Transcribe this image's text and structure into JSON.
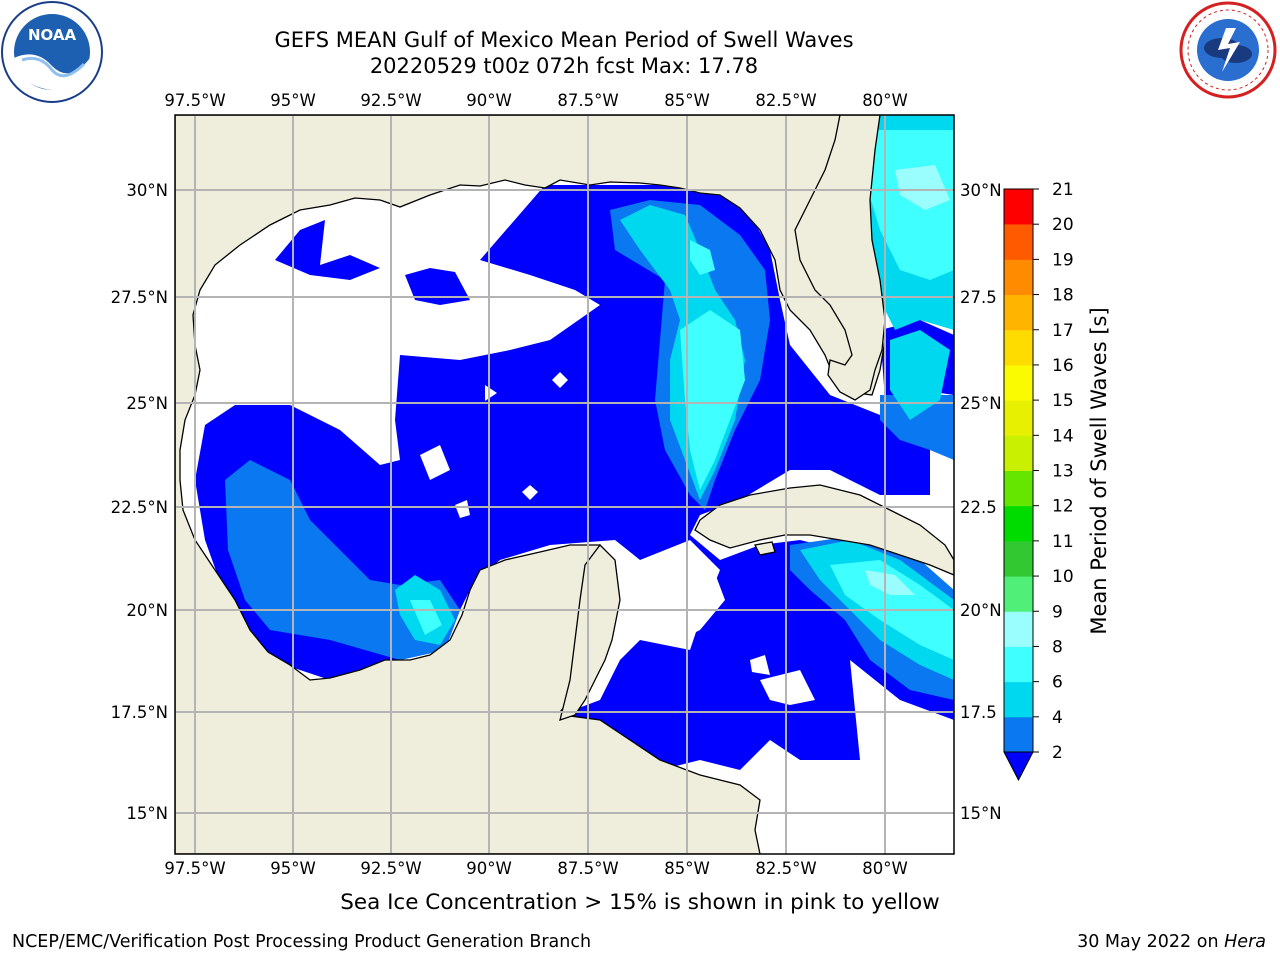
{
  "title": {
    "line1": "GEFS MEAN Gulf of Mexico Mean Period of Swell Waves",
    "line2": "20220529 t00z 072h fcst   Max: 17.78"
  },
  "logos": {
    "left": "noaa-logo",
    "right": "nws-logo"
  },
  "map": {
    "lon_labels": [
      "97.5°W",
      "95°W",
      "92.5°W",
      "90°W",
      "87.5°W",
      "85°W",
      "82.5°W",
      "80°W"
    ],
    "lat_labels_left": [
      "30°N",
      "27.5°N",
      "25°N",
      "22.5°N",
      "20°N",
      "17.5°N",
      "15°N"
    ],
    "lat_labels_right": [
      "30°N",
      "27.5",
      "25°N",
      "22.5",
      "20°N",
      "17.5",
      "15°N"
    ],
    "colors": {
      "land": "#efeedd",
      "ocean_missing": "#ffffff",
      "grid": "#b4b4b4"
    }
  },
  "colorbar": {
    "label": "Mean Period of Swell Waves [s]",
    "ticks": [
      "2",
      "4",
      "6",
      "8",
      "9",
      "10",
      "11",
      "12",
      "13",
      "14",
      "15",
      "16",
      "17",
      "18",
      "19",
      "20",
      "21"
    ],
    "colors": [
      "#0a78f0",
      "#00d8f0",
      "#40ffff",
      "#9afefe",
      "#50ef78",
      "#32c832",
      "#00dc00",
      "#64e600",
      "#c8f000",
      "#e6f000",
      "#fafa00",
      "#ffdc00",
      "#ffb400",
      "#ff8c00",
      "#ff5a00",
      "#ff3200",
      "#ff0000"
    ],
    "under_color": "#0000ff"
  },
  "subtitle": "Sea Ice Concentration > 15% is shown in pink to yellow",
  "footer": {
    "left": "NCEP/EMC/Verification Post Processing Product Generation Branch",
    "right_date": "30 May 2022 on",
    "right_host": "Hera"
  }
}
